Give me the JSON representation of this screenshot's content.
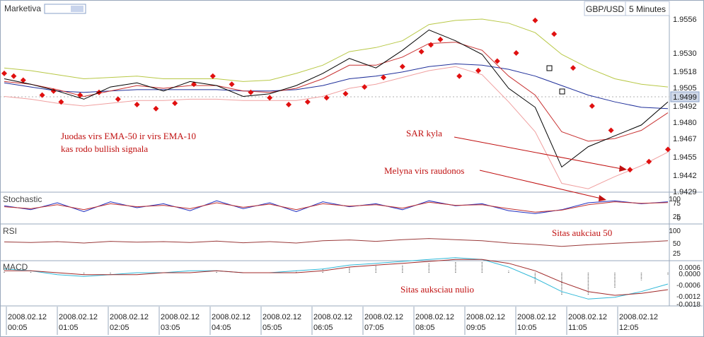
{
  "header": {
    "app_name": "Marketiva",
    "symbol": "GBP/USD",
    "timeframe": "5 Minutes"
  },
  "price_labels": [
    "1.9556",
    "1.9530",
    "1.9518",
    "1.9505",
    "1.9492",
    "1.9480",
    "1.9467",
    "1.9455",
    "1.9442",
    "1.9429"
  ],
  "current_price": "1.9499",
  "panels": {
    "stochastic": {
      "title": "Stochastic",
      "ticks": [
        "100",
        "75",
        "25",
        "0"
      ]
    },
    "rsi": {
      "title": "RSI",
      "ticks": [
        "100",
        "50",
        "25"
      ]
    },
    "macd": {
      "title": "MACD",
      "ticks": [
        "0.0006",
        "0.0000",
        "-0.0006",
        "-0.0012",
        "-0.0018"
      ]
    }
  },
  "annotations": {
    "main_note_line1": "Juodas virs EMA-50 ir virs EMA-10",
    "main_note_line2": "kas rodo bullish signala",
    "sar_note": "SAR kyla",
    "blue_red_note": "Melyna virs raudonos",
    "rsi_note": "Sitas aukciau 50",
    "macd_note": "Sitas auksciau nulio"
  },
  "time_axis": [
    {
      "date": "2008.02.12",
      "time": "00:05"
    },
    {
      "date": "2008.02.12",
      "time": "01:05"
    },
    {
      "date": "2008.02.12",
      "time": "02:05"
    },
    {
      "date": "2008.02.12",
      "time": "03:05"
    },
    {
      "date": "2008.02.12",
      "time": "04:05"
    },
    {
      "date": "2008.02.12",
      "time": "05:05"
    },
    {
      "date": "2008.02.12",
      "time": "06:05"
    },
    {
      "date": "2008.02.12",
      "time": "07:05"
    },
    {
      "date": "2008.02.12",
      "time": "08:05"
    },
    {
      "date": "2008.02.12",
      "time": "09:05"
    },
    {
      "date": "2008.02.12",
      "time": "10:05"
    },
    {
      "date": "2008.02.12",
      "time": "11:05"
    },
    {
      "date": "2008.02.12",
      "time": "12:05"
    }
  ],
  "colors": {
    "price": "#000000",
    "ema50": "#1f2f9a",
    "ema10": "#c83232",
    "bollinger_upper": "#b8c846",
    "bollinger_lower": "#f0a0a0",
    "sar": "#e01010",
    "stoch_k": "#2030c0",
    "stoch_d": "#c03030",
    "rsi": "#9a3a3a",
    "macd_line": "#30b8d8",
    "macd_signal": "#a02828",
    "annotation": "#c01010"
  },
  "chart_data": {
    "type": "line",
    "x_labels": [
      "00:05",
      "01:05",
      "02:05",
      "03:05",
      "04:05",
      "05:05",
      "06:05",
      "07:05",
      "08:05",
      "09:05",
      "10:05",
      "11:05",
      "12:05"
    ],
    "y_range": [
      1.9429,
      1.9556
    ],
    "series": [
      {
        "key": "price",
        "values": [
          1.9512,
          1.9508,
          1.9503,
          1.9497,
          1.9506,
          1.9509,
          1.9503,
          1.951,
          1.9507,
          1.9499,
          1.9501,
          1.9507,
          1.9516,
          1.9527,
          1.952,
          1.9533,
          1.9548,
          1.954,
          1.953,
          1.9505,
          1.9491,
          1.9447,
          1.9462,
          1.947,
          1.9478,
          1.9495
        ]
      },
      {
        "key": "ema50",
        "values": [
          1.9509,
          1.9506,
          1.9503,
          1.9502,
          1.9503,
          1.9504,
          1.9504,
          1.9504,
          1.9504,
          1.9503,
          1.9503,
          1.9504,
          1.9507,
          1.9512,
          1.9514,
          1.9517,
          1.9521,
          1.9523,
          1.9522,
          1.9519,
          1.9514,
          1.9507,
          1.95,
          1.9495,
          1.9491,
          1.949
        ]
      },
      {
        "key": "ema10",
        "values": [
          1.951,
          1.9508,
          1.9504,
          1.9499,
          1.9503,
          1.9507,
          1.9505,
          1.9507,
          1.9507,
          1.9503,
          1.9502,
          1.9505,
          1.9512,
          1.9522,
          1.9522,
          1.9528,
          1.9538,
          1.9539,
          1.9533,
          1.9514,
          1.95,
          1.9473,
          1.9466,
          1.9468,
          1.9474,
          1.9487
        ]
      },
      {
        "key": "bollinger_upper",
        "values": [
          1.952,
          1.9518,
          1.9515,
          1.9512,
          1.9513,
          1.9514,
          1.9512,
          1.9512,
          1.9512,
          1.951,
          1.9511,
          1.9516,
          1.9522,
          1.9532,
          1.9535,
          1.954,
          1.9552,
          1.9555,
          1.9556,
          1.9553,
          1.9546,
          1.953,
          1.952,
          1.9512,
          1.9508,
          1.9506
        ]
      },
      {
        "key": "bollinger_lower",
        "values": [
          1.9499,
          1.9497,
          1.9494,
          1.9492,
          1.9494,
          1.9496,
          1.9496,
          1.9497,
          1.9497,
          1.9496,
          1.9496,
          1.9496,
          1.9499,
          1.9505,
          1.9508,
          1.9513,
          1.9518,
          1.9521,
          1.9515,
          1.9495,
          1.9473,
          1.9435,
          1.9431,
          1.944,
          1.9448,
          1.9458
        ]
      },
      {
        "key": "stochastic_k",
        "values": [
          60,
          40,
          75,
          30,
          80,
          50,
          70,
          35,
          85,
          45,
          75,
          30,
          80,
          55,
          70,
          40,
          85,
          60,
          70,
          35,
          20,
          40,
          75,
          85,
          70,
          80
        ]
      },
      {
        "key": "stochastic_d",
        "values": [
          55,
          45,
          65,
          40,
          70,
          55,
          62,
          45,
          75,
          52,
          68,
          40,
          70,
          58,
          65,
          48,
          78,
          62,
          65,
          45,
          28,
          38,
          65,
          80,
          72,
          76
        ]
      },
      {
        "key": "rsi",
        "values": [
          54,
          52,
          55,
          50,
          56,
          53,
          55,
          52,
          57,
          51,
          55,
          50,
          58,
          61,
          56,
          62,
          66,
          62,
          58,
          50,
          45,
          38,
          44,
          49,
          53,
          58
        ]
      },
      {
        "key": "macd",
        "values": [
          0.0002,
          0.0001,
          -0.0001,
          -0.0002,
          -0.0001,
          0.0,
          0.0,
          0.0001,
          0.0001,
          0.0,
          0.0,
          0.0001,
          0.0002,
          0.0004,
          0.0005,
          0.0006,
          0.0007,
          0.0008,
          0.0007,
          0.0003,
          -0.0003,
          -0.001,
          -0.0014,
          -0.0013,
          -0.001,
          -0.0006
        ]
      },
      {
        "key": "macd_signal",
        "values": [
          0.0001,
          0.0001,
          0.0,
          -0.0001,
          -0.0001,
          -0.0001,
          0.0,
          0.0,
          0.0001,
          0.0,
          0.0,
          0.0,
          0.0001,
          0.0003,
          0.0004,
          0.0005,
          0.0006,
          0.0007,
          0.0007,
          0.0005,
          0.0001,
          -0.0005,
          -0.001,
          -0.0012,
          -0.0011,
          -0.0009
        ]
      }
    ],
    "sar": [
      {
        "x": 0,
        "v": 1.9516
      },
      {
        "x": 0.5,
        "v": 1.9514
      },
      {
        "x": 1,
        "v": 1.9511
      },
      {
        "x": 2,
        "v": 1.95
      },
      {
        "x": 2.6,
        "v": 1.9503
      },
      {
        "x": 3,
        "v": 1.9495
      },
      {
        "x": 4,
        "v": 1.95
      },
      {
        "x": 5,
        "v": 1.9502
      },
      {
        "x": 6,
        "v": 1.9497
      },
      {
        "x": 7,
        "v": 1.9493
      },
      {
        "x": 8,
        "v": 1.949
      },
      {
        "x": 9,
        "v": 1.9494
      },
      {
        "x": 10,
        "v": 1.9508
      },
      {
        "x": 11,
        "v": 1.9514
      },
      {
        "x": 12,
        "v": 1.9508
      },
      {
        "x": 13,
        "v": 1.9502
      },
      {
        "x": 14,
        "v": 1.9498
      },
      {
        "x": 15,
        "v": 1.9493
      },
      {
        "x": 16,
        "v": 1.9495
      },
      {
        "x": 17,
        "v": 1.9498
      },
      {
        "x": 18,
        "v": 1.9501
      },
      {
        "x": 19,
        "v": 1.9506
      },
      {
        "x": 20,
        "v": 1.9513
      },
      {
        "x": 21,
        "v": 1.9521
      },
      {
        "x": 22,
        "v": 1.9532
      },
      {
        "x": 22.5,
        "v": 1.9537
      },
      {
        "x": 23,
        "v": 1.9541
      },
      {
        "x": 24,
        "v": 1.9514
      },
      {
        "x": 25,
        "v": 1.9518
      },
      {
        "x": 26,
        "v": 1.9525
      },
      {
        "x": 27,
        "v": 1.9531
      },
      {
        "x": 28,
        "v": 1.9555
      },
      {
        "x": 29,
        "v": 1.9545
      },
      {
        "x": 30,
        "v": 1.952
      },
      {
        "x": 31,
        "v": 1.9492
      },
      {
        "x": 32,
        "v": 1.9474
      },
      {
        "x": 33,
        "v": 1.9445
      },
      {
        "x": 34,
        "v": 1.9451
      },
      {
        "x": 35,
        "v": 1.946
      }
    ],
    "macd_histogram": [
      0.0001,
      0.0001,
      0.0,
      -0.0001,
      -0.0001,
      0.0,
      0.0,
      0.0,
      0.0001,
      0.0,
      0.0,
      0.0001,
      0.0002,
      0.0003,
      0.0004,
      0.0004,
      0.0005,
      0.0006,
      0.0006,
      0.0001,
      -0.0006,
      -0.0012,
      -0.0012,
      -0.0008,
      -0.0004,
      -0.0001
    ],
    "ylabel": "",
    "xlabel": ""
  }
}
